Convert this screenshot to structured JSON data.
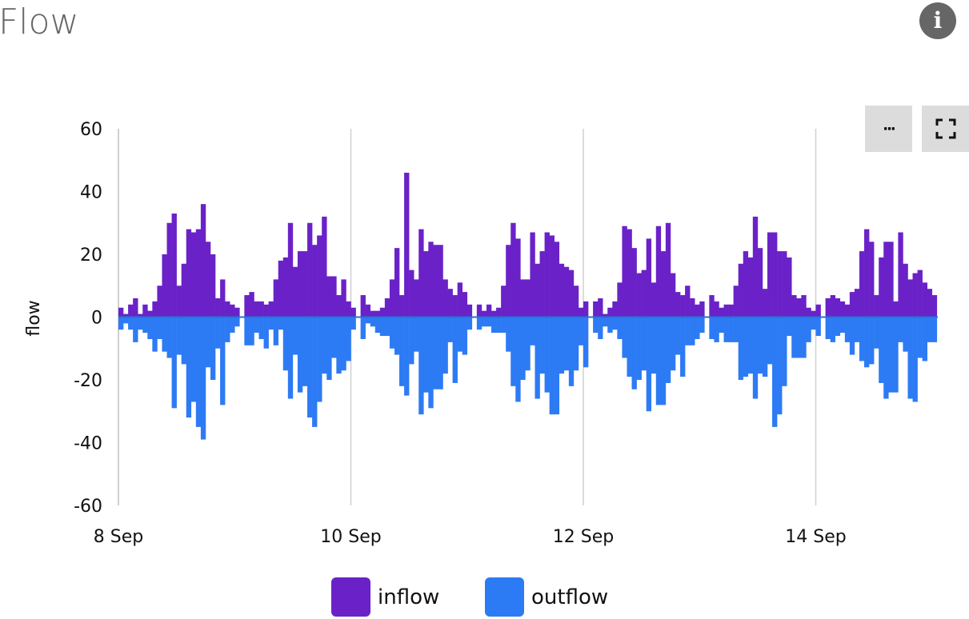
{
  "header": {
    "title": "Flow",
    "info_icon": "info-icon"
  },
  "toolbar": {
    "menu_label": "···",
    "menu_icon": "more-horizontal-icon",
    "fullscreen_icon": "fullscreen-icon"
  },
  "legend": [
    {
      "label": "inflow",
      "color": "#6a22c8"
    },
    {
      "label": "outflow",
      "color": "#2d7bf4"
    }
  ],
  "chart_data": {
    "type": "bar",
    "title": "",
    "xlabel": "",
    "ylabel": "flow",
    "ylim": [
      -60,
      60
    ],
    "yticks": [
      "60",
      "40",
      "20",
      "0",
      "-20",
      "-40",
      "-60"
    ],
    "xticks": [
      "8 Sep",
      "10 Sep",
      "12 Sep",
      "14 Sep"
    ],
    "x_start": "8 Sep 00:00",
    "x_interval": "1 hour",
    "grid": "vertical at x ticks",
    "legend_position": "bottom",
    "series": [
      {
        "name": "inflow",
        "color": "#6a22c8",
        "values": [
          3,
          1,
          4,
          6,
          1,
          4,
          2,
          5,
          10,
          20,
          30,
          33,
          10,
          17,
          28,
          27,
          28,
          36,
          24,
          20,
          6,
          12,
          5,
          4,
          3,
          0,
          7,
          8,
          5,
          5,
          4,
          5,
          12,
          18,
          19,
          30,
          16,
          21,
          21,
          30,
          23,
          26,
          32,
          13,
          13,
          7,
          12,
          5,
          3,
          0,
          7,
          4,
          2,
          2,
          3,
          6,
          12,
          22,
          7,
          46,
          15,
          12,
          28,
          21,
          24,
          23,
          23,
          12,
          9,
          7,
          11,
          8,
          4,
          0,
          4,
          2,
          4,
          2,
          3,
          10,
          23,
          30,
          25,
          12,
          12,
          27,
          17,
          21,
          27,
          26,
          24,
          17,
          16,
          15,
          10,
          3,
          5,
          0,
          5,
          6,
          1,
          3,
          5,
          11,
          29,
          28,
          22,
          14,
          15,
          25,
          11,
          29,
          21,
          30,
          14,
          8,
          7,
          10,
          6,
          4,
          5,
          0,
          7,
          5,
          3,
          4,
          4,
          10,
          17,
          21,
          19,
          32,
          22,
          9,
          27,
          27,
          21,
          21,
          19,
          7,
          6,
          7,
          3,
          2,
          4,
          0,
          6,
          7,
          6,
          5,
          4,
          8,
          9,
          21,
          28,
          24,
          7,
          19,
          24,
          24,
          5,
          27,
          17,
          12,
          14,
          15,
          11,
          9,
          7
        ]
      },
      {
        "name": "outflow",
        "color": "#2d7bf4",
        "values": [
          -4,
          -2,
          -4,
          -8,
          -4,
          -5,
          -7,
          -11,
          -7,
          -11,
          -13,
          -29,
          -12,
          -15,
          -32,
          -27,
          -35,
          -39,
          -16,
          -20,
          -10,
          -28,
          -8,
          -5,
          -3,
          0,
          -9,
          -9,
          -5,
          -7,
          -10,
          -4,
          -9,
          -4,
          -17,
          -26,
          -12,
          -24,
          -22,
          -32,
          -35,
          -27,
          -18,
          -20,
          -13,
          -18,
          -17,
          -14,
          -4,
          0,
          -7,
          -2,
          -3,
          -5,
          -6,
          -6,
          -10,
          -12,
          -22,
          -25,
          -15,
          -11,
          -31,
          -24,
          -29,
          -23,
          -23,
          -18,
          -8,
          -21,
          -11,
          -12,
          -4,
          0,
          -4,
          -3,
          -3,
          -5,
          -5,
          -5,
          -11,
          -22,
          -27,
          -20,
          -17,
          -9,
          -26,
          -18,
          -24,
          -31,
          -31,
          -18,
          -17,
          -22,
          -17,
          -9,
          -16,
          0,
          -5,
          -7,
          -3,
          -5,
          -4,
          -7,
          -13,
          -19,
          -23,
          -20,
          -17,
          -30,
          -18,
          -28,
          -28,
          -21,
          -17,
          -12,
          -19,
          -9,
          -9,
          -7,
          -5,
          0,
          -7,
          -8,
          -5,
          -8,
          -8,
          -8,
          -20,
          -19,
          -18,
          -26,
          -18,
          -19,
          -15,
          -35,
          -31,
          -22,
          -6,
          -13,
          -13,
          -13,
          -8,
          -4,
          -6,
          0,
          -7,
          -8,
          -6,
          -5,
          -8,
          -12,
          -8,
          -14,
          -16,
          -15,
          -10,
          -21,
          -26,
          -24,
          -24,
          -8,
          -11,
          -26,
          -27,
          -13,
          -14,
          -8,
          -8
        ]
      }
    ]
  }
}
